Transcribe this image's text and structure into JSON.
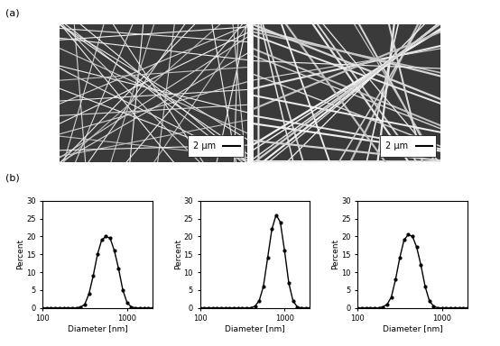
{
  "panel_labels": [
    "(a)",
    "(b)"
  ],
  "images": [
    {
      "scale_bar": "2 μm"
    },
    {
      "scale_bar": "2 μm"
    }
  ],
  "chart_data": [
    {
      "type": "line",
      "xlabel": "Diameter [nm]",
      "ylabel": "Percent",
      "log": "x",
      "grid": false,
      "color": "#000000",
      "marker": "dot",
      "x": [
        100,
        112,
        126,
        141,
        158,
        178,
        200,
        224,
        251,
        282,
        316,
        355,
        398,
        447,
        501,
        562,
        631,
        708,
        794,
        891,
        1000,
        1122,
        1259,
        1413,
        1585,
        1778,
        2000
      ],
      "values": [
        0,
        0,
        0,
        0,
        0,
        0,
        0,
        0,
        0,
        0.2,
        1,
        4,
        9,
        15,
        19,
        20,
        19.5,
        16,
        11,
        5,
        1.5,
        0.3,
        0,
        0,
        0,
        0,
        0
      ],
      "xlim": [
        100,
        2000
      ],
      "xticks": [
        100,
        1000
      ],
      "ylim": [
        0,
        30
      ],
      "yticks": [
        0,
        5,
        10,
        15,
        20,
        25,
        30
      ]
    },
    {
      "type": "line",
      "xlabel": "Diameter [nm]",
      "ylabel": "Percent",
      "log": "x",
      "grid": false,
      "color": "#000000",
      "marker": "dot",
      "x": [
        100,
        112,
        126,
        141,
        158,
        178,
        200,
        224,
        251,
        282,
        316,
        355,
        398,
        447,
        501,
        562,
        631,
        708,
        794,
        891,
        1000,
        1122,
        1259,
        1413,
        1585,
        1778,
        2000
      ],
      "values": [
        0,
        0,
        0,
        0,
        0,
        0,
        0,
        0,
        0,
        0,
        0,
        0,
        0,
        0.5,
        2,
        6,
        14,
        22,
        26,
        24,
        16,
        7,
        2,
        0.3,
        0,
        0,
        0
      ],
      "xlim": [
        100,
        2000
      ],
      "xticks": [
        100,
        1000
      ],
      "ylim": [
        0,
        30
      ],
      "yticks": [
        0,
        5,
        10,
        15,
        20,
        25,
        30
      ]
    },
    {
      "type": "line",
      "xlabel": "Diameter [nm]",
      "ylabel": "Percent",
      "log": "x",
      "grid": false,
      "color": "#000000",
      "marker": "dot",
      "x": [
        100,
        112,
        126,
        141,
        158,
        178,
        200,
        224,
        251,
        282,
        316,
        355,
        398,
        447,
        501,
        562,
        631,
        708,
        794,
        891,
        1000,
        1122,
        1259,
        1413,
        1585,
        1778,
        2000
      ],
      "values": [
        0,
        0,
        0,
        0,
        0,
        0,
        0.3,
        1,
        3,
        8,
        14,
        19,
        20.5,
        20,
        17,
        12,
        6,
        2,
        0.5,
        0,
        0,
        0,
        0,
        0,
        0,
        0,
        0
      ],
      "xlim": [
        100,
        2000
      ],
      "xticks": [
        100,
        1000
      ],
      "ylim": [
        0,
        30
      ],
      "yticks": [
        0,
        5,
        10,
        15,
        20,
        25,
        30
      ]
    }
  ]
}
